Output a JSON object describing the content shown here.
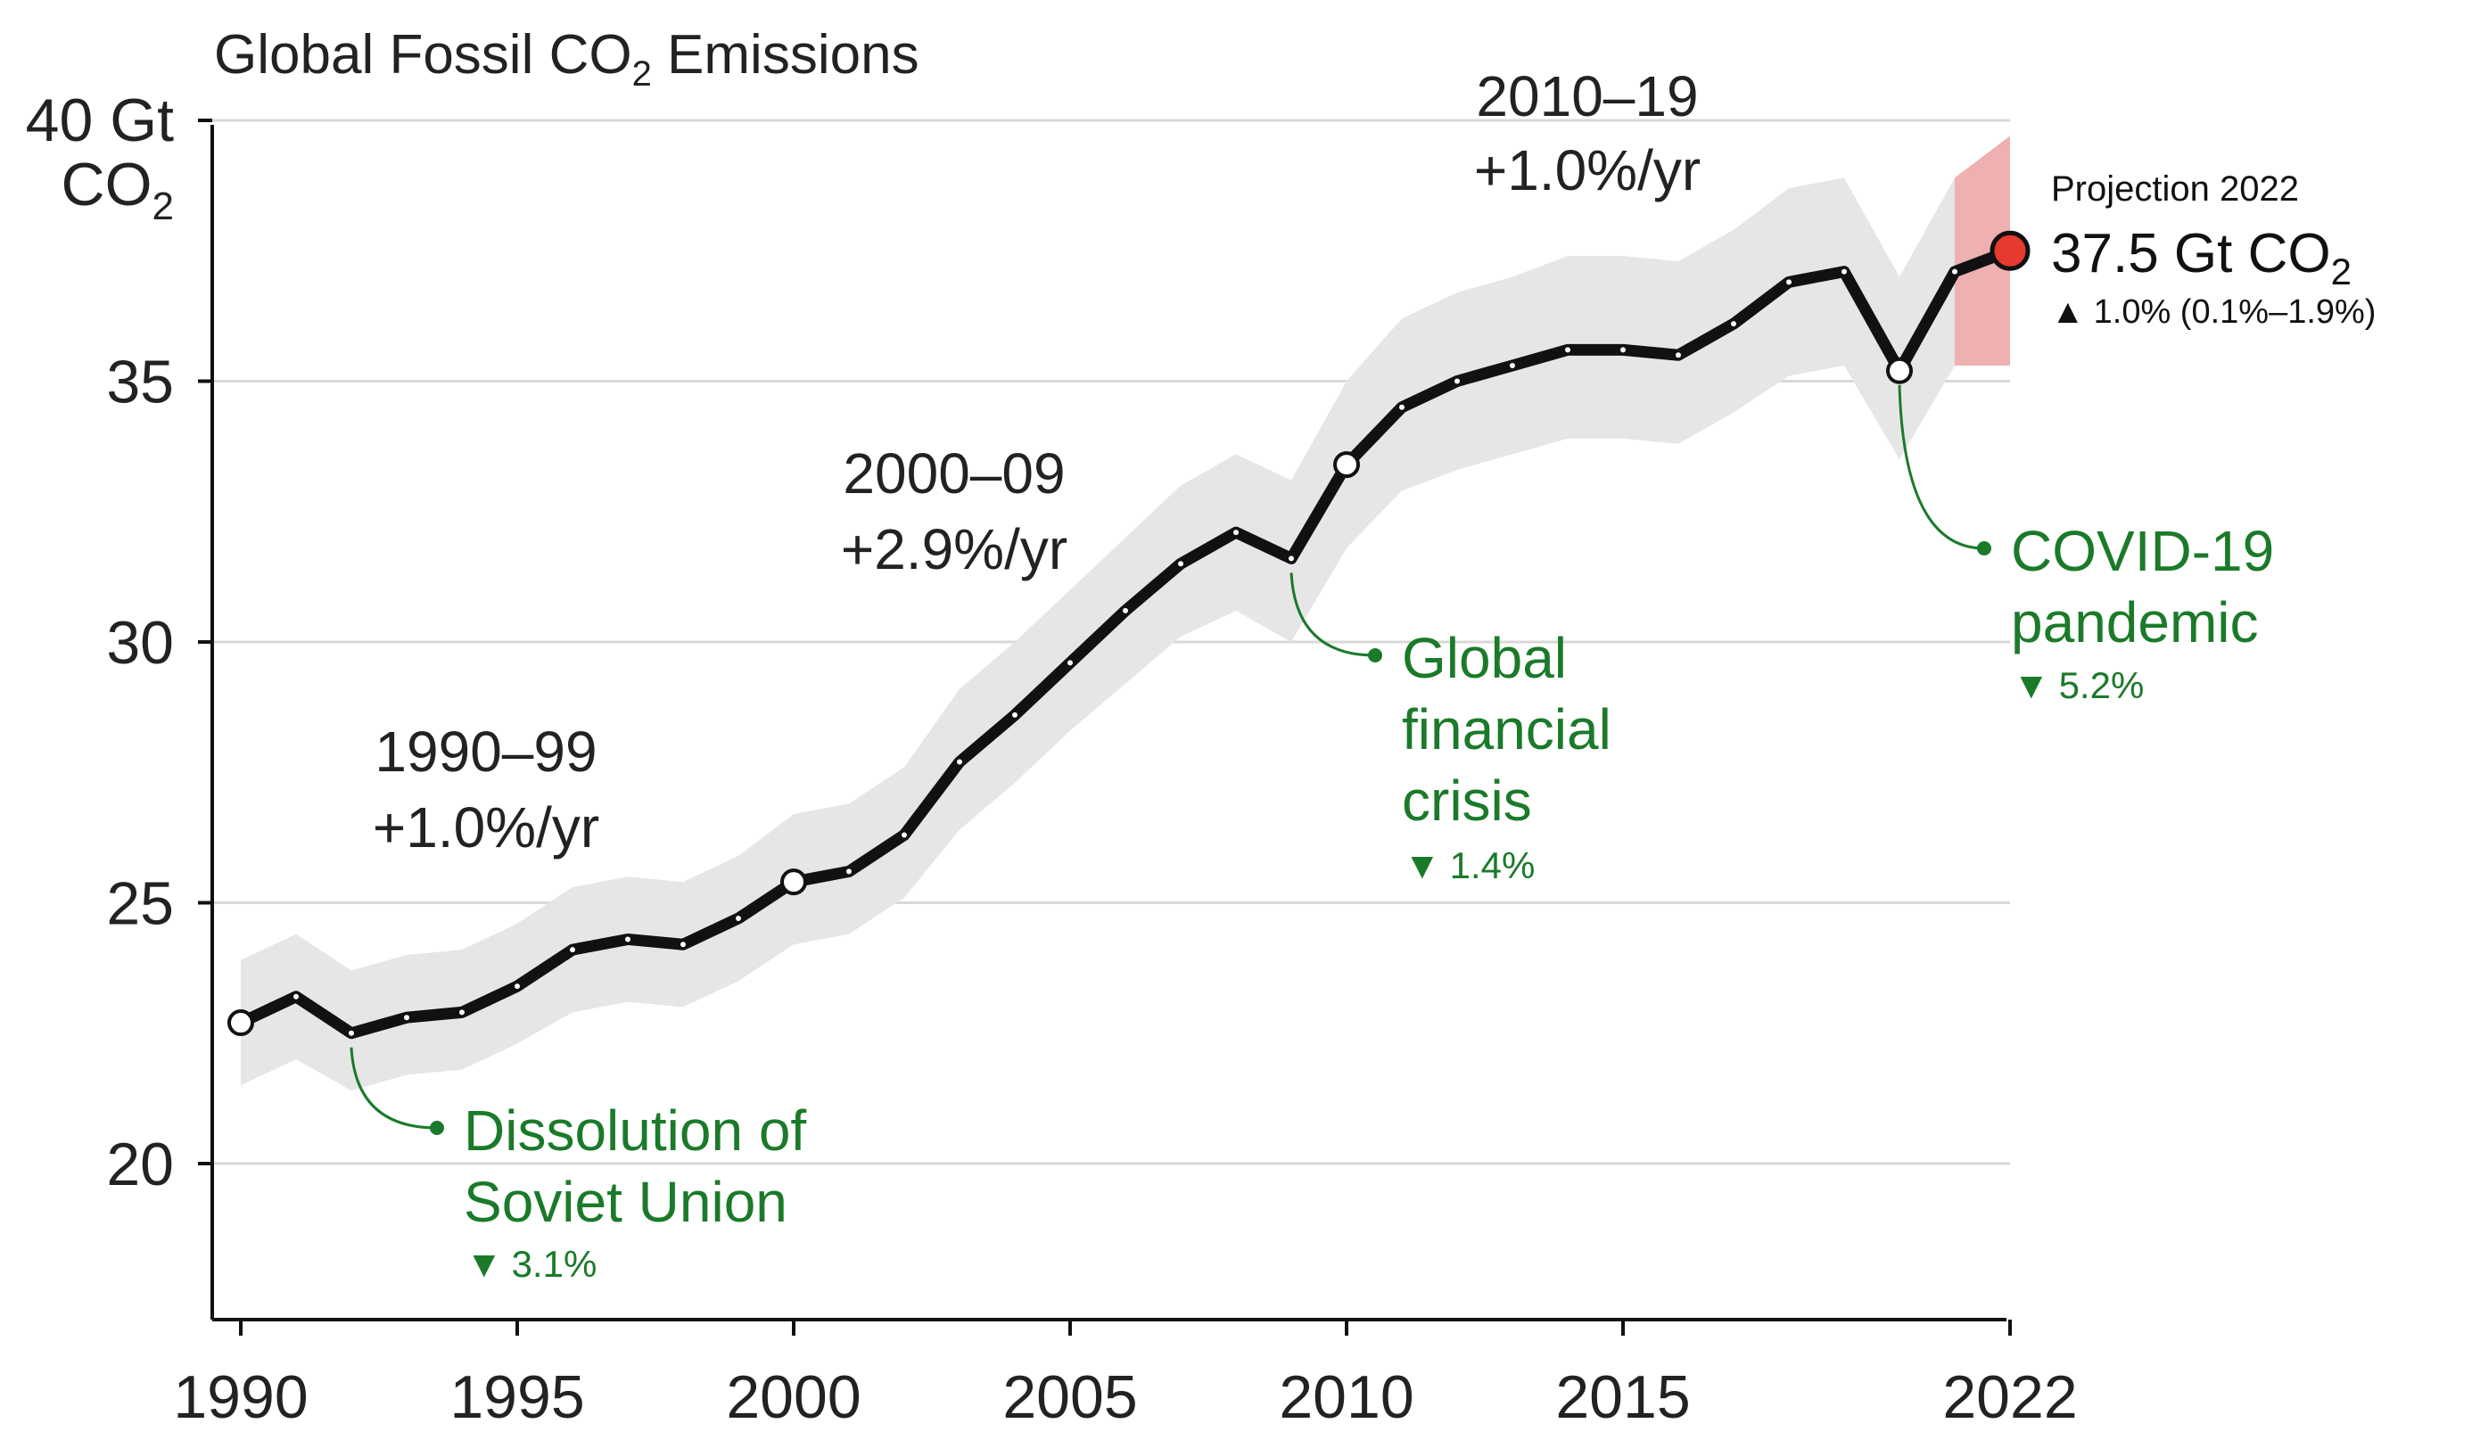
{
  "chart_data": {
    "type": "line",
    "title": "Global Fossil CO",
    "title_sub": "2",
    "title_tail": " Emissions",
    "ylabel_line1": "40 Gt",
    "ylabel_line2": "CO",
    "ylabel_sub": "2",
    "ylim": [
      17,
      40
    ],
    "xlim": [
      1990,
      2022
    ],
    "yticks": [
      20,
      25,
      30,
      35
    ],
    "yticks_labels": [
      "20",
      "25",
      "30",
      "35"
    ],
    "xticks": [
      1990,
      1995,
      2000,
      2005,
      2010,
      2015,
      2022
    ],
    "xticks_labels": [
      "1990",
      "1995",
      "2000",
      "2005",
      "2010",
      "2015",
      "2022"
    ],
    "gridlines": [
      20,
      25,
      30,
      35,
      40
    ],
    "series": [
      {
        "name": "Global fossil CO2 emissions",
        "x": [
          1990,
          1991,
          1992,
          1993,
          1994,
          1995,
          1996,
          1997,
          1998,
          1999,
          2000,
          2001,
          2002,
          2003,
          2004,
          2005,
          2006,
          2007,
          2008,
          2009,
          2010,
          2011,
          2012,
          2013,
          2014,
          2015,
          2016,
          2017,
          2018,
          2019,
          2020,
          2021,
          2022
        ],
        "values": [
          22.7,
          23.2,
          22.5,
          22.8,
          22.9,
          23.4,
          24.1,
          24.3,
          24.2,
          24.7,
          25.4,
          25.6,
          26.3,
          27.7,
          28.6,
          29.6,
          30.6,
          31.5,
          32.1,
          31.6,
          33.4,
          34.5,
          35.0,
          35.3,
          35.6,
          35.6,
          35.5,
          36.1,
          36.9,
          37.1,
          35.2,
          37.1,
          37.5
        ],
        "uncertainty_low": [
          21.5,
          22.0,
          21.4,
          21.7,
          21.8,
          22.3,
          22.9,
          23.1,
          23.0,
          23.5,
          24.2,
          24.4,
          25.1,
          26.4,
          27.3,
          28.3,
          29.2,
          30.1,
          30.6,
          30.0,
          31.8,
          32.9,
          33.3,
          33.6,
          33.9,
          33.9,
          33.8,
          34.4,
          35.1,
          35.3,
          33.5,
          35.3,
          35.3
        ],
        "uncertainty_high": [
          23.9,
          24.4,
          23.7,
          24.0,
          24.1,
          24.6,
          25.3,
          25.5,
          25.4,
          25.9,
          26.7,
          26.9,
          27.6,
          29.1,
          30.0,
          31.0,
          32.0,
          33.0,
          33.6,
          33.1,
          35.0,
          36.2,
          36.7,
          37.0,
          37.4,
          37.4,
          37.3,
          37.9,
          38.7,
          38.9,
          37.0,
          38.9,
          39.7
        ],
        "highlight_years": [
          1990,
          2000,
          2010,
          2020
        ]
      }
    ],
    "projection": {
      "year": 2022,
      "value": 37.5,
      "range_low": 35.3,
      "range_high": 39.7,
      "shade_start_year": 2021,
      "label_title": "Projection 2022",
      "label_value": "37.5 Gt CO",
      "label_value_sub": "2",
      "label_change": "1.0% (0.1%–1.9%)",
      "up_symbol": "▲"
    },
    "annotations": {
      "decades": [
        {
          "line1": "1990–99",
          "line2": "+1.0%/yr"
        },
        {
          "line1": "2000–09",
          "line2": "+2.9%/yr"
        },
        {
          "line1": "2010–19",
          "line2": "+1.0%/yr"
        }
      ],
      "events": [
        {
          "lines": [
            "Dissolution of",
            "Soviet Union"
          ],
          "pct": "3.1%",
          "year": 1992,
          "value": 22.5
        },
        {
          "lines": [
            "Global",
            "financial",
            "crisis"
          ],
          "pct": "1.4%",
          "year": 2009,
          "value": 31.6
        },
        {
          "lines": [
            "COVID-19",
            "pandemic"
          ],
          "pct": "5.2%",
          "year": 2020,
          "value": 35.2
        }
      ],
      "down_symbol": "▼"
    },
    "colors": {
      "line": "#111111",
      "band": "#e6e6e6",
      "projection_band": "#eeb0b0",
      "projection_dot": "#e8392f",
      "grid": "#d8d8d8",
      "event": "#1b7a2a"
    }
  }
}
